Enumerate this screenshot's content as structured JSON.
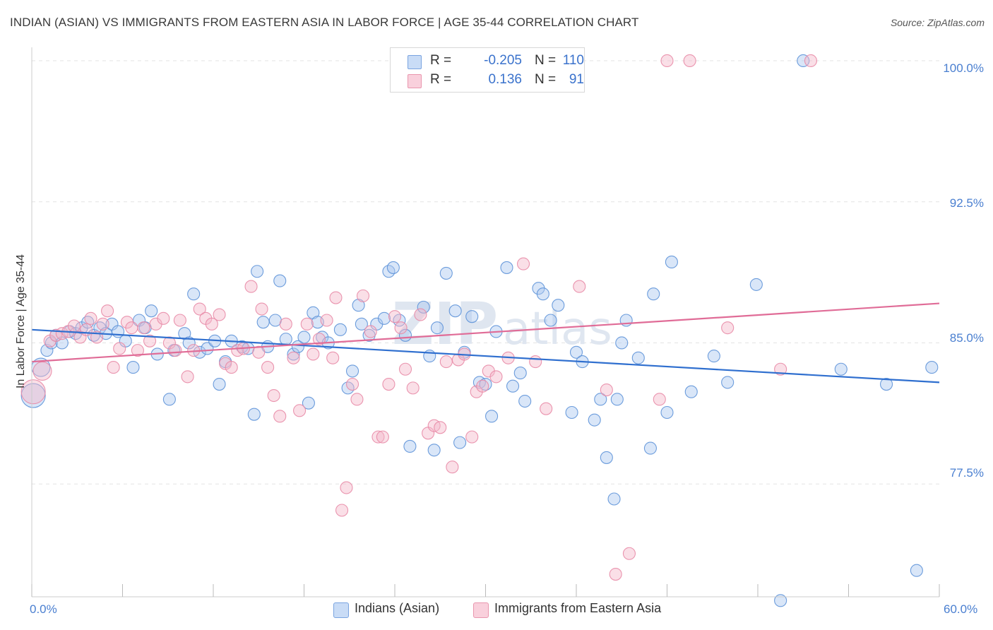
{
  "title": "INDIAN (ASIAN) VS IMMIGRANTS FROM EASTERN ASIA IN LABOR FORCE | AGE 35-44 CORRELATION CHART",
  "source": "Source: ZipAtlas.com",
  "watermark": "ZIPatlas",
  "stats": [
    {
      "r_label": "R =",
      "r_value": "-0.205",
      "n_label": "N =",
      "n_value": "110",
      "color": "#aac8f0"
    },
    {
      "r_label": "R =",
      "r_value": "0.136",
      "n_label": "N =",
      "n_value": "91",
      "color": "#f5b8ca"
    }
  ],
  "colors": {
    "blue_fill": "#aac8f0",
    "blue_stroke": "#5d92d8",
    "blue_line": "#2f6fcf",
    "pink_fill": "#f5b8ca",
    "pink_stroke": "#e88aa6",
    "pink_line": "#e06c97",
    "tick_text": "#4a7fd0",
    "grid": "#e3e3e3"
  },
  "chart_data": {
    "type": "scatter",
    "title": "INDIAN (ASIAN) VS IMMIGRANTS FROM EASTERN ASIA IN LABOR FORCE | AGE 35-44 CORRELATION CHART",
    "xlabel": "",
    "ylabel": "In Labor Force | Age 35-44",
    "xlim": [
      0,
      60
    ],
    "ylim": [
      71.5,
      100.6
    ],
    "x_tick_labels": [
      "0.0%",
      "60.0%"
    ],
    "y_ticks": [
      77.5,
      85.0,
      92.5,
      100.0
    ],
    "y_tick_labels": [
      "77.5%",
      "85.0%",
      "92.5%",
      "100.0%"
    ],
    "grid": true,
    "legend_position": "bottom",
    "series": [
      {
        "name": "Indians (Asian)",
        "trend": {
          "x": [
            0,
            60
          ],
          "y": [
            85.7,
            82.9
          ]
        },
        "points": [
          [
            0.1,
            82.2
          ],
          [
            0.6,
            83.7
          ],
          [
            1.0,
            84.6
          ],
          [
            1.3,
            85.0
          ],
          [
            1.6,
            85.4
          ],
          [
            2.0,
            85.0
          ],
          [
            2.5,
            85.6
          ],
          [
            2.9,
            85.5
          ],
          [
            3.3,
            85.8
          ],
          [
            3.7,
            86.1
          ],
          [
            4.1,
            85.4
          ],
          [
            4.5,
            85.8
          ],
          [
            4.9,
            85.5
          ],
          [
            5.3,
            86.0
          ],
          [
            5.7,
            85.6
          ],
          [
            6.2,
            85.1
          ],
          [
            6.7,
            83.7
          ],
          [
            7.1,
            86.2
          ],
          [
            7.5,
            85.8
          ],
          [
            7.9,
            86.7
          ],
          [
            8.3,
            84.4
          ],
          [
            9.1,
            82.0
          ],
          [
            9.4,
            84.6
          ],
          [
            10.1,
            85.5
          ],
          [
            10.4,
            85.0
          ],
          [
            10.7,
            87.6
          ],
          [
            11.1,
            84.5
          ],
          [
            11.6,
            84.7
          ],
          [
            12.1,
            85.1
          ],
          [
            12.4,
            82.8
          ],
          [
            12.8,
            84.0
          ],
          [
            13.2,
            85.1
          ],
          [
            13.9,
            84.8
          ],
          [
            14.3,
            84.7
          ],
          [
            14.7,
            81.2
          ],
          [
            14.9,
            88.8
          ],
          [
            15.3,
            86.1
          ],
          [
            15.6,
            84.8
          ],
          [
            16.1,
            86.2
          ],
          [
            16.4,
            88.3
          ],
          [
            16.8,
            85.2
          ],
          [
            17.3,
            84.4
          ],
          [
            17.6,
            84.8
          ],
          [
            18.0,
            85.3
          ],
          [
            18.3,
            81.8
          ],
          [
            18.6,
            86.6
          ],
          [
            18.9,
            86.1
          ],
          [
            19.2,
            85.3
          ],
          [
            19.6,
            85.0
          ],
          [
            20.4,
            85.7
          ],
          [
            20.9,
            82.6
          ],
          [
            21.2,
            83.5
          ],
          [
            21.6,
            87.0
          ],
          [
            21.8,
            86.0
          ],
          [
            22.3,
            85.4
          ],
          [
            22.8,
            86.0
          ],
          [
            23.3,
            86.3
          ],
          [
            23.6,
            88.8
          ],
          [
            23.9,
            89.0
          ],
          [
            24.3,
            86.2
          ],
          [
            24.7,
            85.4
          ],
          [
            25.0,
            79.5
          ],
          [
            25.9,
            86.9
          ],
          [
            26.3,
            84.3
          ],
          [
            26.6,
            79.3
          ],
          [
            26.8,
            85.8
          ],
          [
            27.4,
            88.7
          ],
          [
            28.0,
            86.7
          ],
          [
            28.3,
            79.7
          ],
          [
            28.6,
            84.5
          ],
          [
            29.1,
            86.4
          ],
          [
            29.6,
            82.9
          ],
          [
            30.0,
            82.8
          ],
          [
            30.4,
            81.1
          ],
          [
            30.7,
            85.6
          ],
          [
            31.4,
            89.0
          ],
          [
            31.8,
            82.7
          ],
          [
            32.3,
            83.4
          ],
          [
            32.6,
            81.9
          ],
          [
            33.5,
            87.9
          ],
          [
            33.8,
            87.6
          ],
          [
            34.3,
            86.2
          ],
          [
            34.8,
            87.0
          ],
          [
            35.7,
            81.3
          ],
          [
            36.0,
            84.5
          ],
          [
            36.4,
            84.0
          ],
          [
            37.2,
            80.9
          ],
          [
            37.6,
            82.0
          ],
          [
            38.0,
            78.9
          ],
          [
            38.5,
            76.7
          ],
          [
            38.7,
            82.0
          ],
          [
            39.0,
            85.0
          ],
          [
            39.3,
            86.2
          ],
          [
            40.1,
            84.2
          ],
          [
            40.9,
            79.4
          ],
          [
            41.1,
            87.6
          ],
          [
            42.0,
            81.3
          ],
          [
            42.3,
            89.3
          ],
          [
            43.6,
            82.4
          ],
          [
            45.1,
            84.3
          ],
          [
            46.0,
            82.9
          ],
          [
            47.9,
            88.1
          ],
          [
            49.5,
            71.3
          ],
          [
            51.0,
            100.0
          ],
          [
            53.5,
            83.6
          ],
          [
            56.5,
            82.8
          ],
          [
            58.5,
            72.9
          ],
          [
            59.5,
            83.7
          ]
        ]
      },
      {
        "name": "Immigrants from Eastern Asia",
        "trend": {
          "x": [
            0,
            60
          ],
          "y": [
            84.0,
            87.1
          ]
        },
        "points": [
          [
            0.1,
            82.4
          ],
          [
            0.7,
            83.5
          ],
          [
            1.2,
            85.1
          ],
          [
            1.6,
            85.4
          ],
          [
            2.0,
            85.5
          ],
          [
            2.4,
            85.6
          ],
          [
            2.8,
            85.9
          ],
          [
            3.2,
            85.3
          ],
          [
            3.6,
            85.7
          ],
          [
            3.9,
            86.3
          ],
          [
            4.3,
            85.3
          ],
          [
            4.7,
            86.0
          ],
          [
            5.0,
            86.7
          ],
          [
            5.4,
            83.7
          ],
          [
            5.8,
            84.7
          ],
          [
            6.3,
            86.1
          ],
          [
            6.6,
            85.8
          ],
          [
            7.0,
            84.6
          ],
          [
            7.4,
            85.8
          ],
          [
            7.8,
            85.1
          ],
          [
            8.2,
            86.0
          ],
          [
            8.7,
            86.3
          ],
          [
            9.1,
            85.0
          ],
          [
            9.5,
            84.6
          ],
          [
            9.8,
            86.2
          ],
          [
            10.3,
            83.2
          ],
          [
            10.7,
            84.6
          ],
          [
            11.1,
            86.8
          ],
          [
            11.5,
            86.3
          ],
          [
            11.9,
            86.0
          ],
          [
            12.4,
            86.5
          ],
          [
            12.8,
            83.9
          ],
          [
            13.2,
            83.7
          ],
          [
            13.6,
            84.6
          ],
          [
            14.0,
            84.7
          ],
          [
            14.5,
            88.0
          ],
          [
            15.0,
            84.5
          ],
          [
            15.2,
            86.8
          ],
          [
            15.6,
            83.7
          ],
          [
            16.0,
            82.2
          ],
          [
            16.4,
            81.1
          ],
          [
            16.8,
            86.0
          ],
          [
            17.3,
            84.2
          ],
          [
            17.7,
            81.4
          ],
          [
            18.2,
            86.0
          ],
          [
            18.6,
            84.4
          ],
          [
            19.0,
            85.2
          ],
          [
            19.5,
            86.2
          ],
          [
            19.9,
            84.2
          ],
          [
            20.1,
            87.4
          ],
          [
            20.5,
            76.1
          ],
          [
            20.8,
            77.3
          ],
          [
            21.2,
            82.8
          ],
          [
            21.5,
            82.0
          ],
          [
            21.9,
            87.5
          ],
          [
            22.4,
            85.6
          ],
          [
            22.9,
            80.0
          ],
          [
            23.2,
            80.0
          ],
          [
            23.6,
            82.8
          ],
          [
            24.0,
            86.4
          ],
          [
            24.4,
            85.8
          ],
          [
            24.7,
            83.6
          ],
          [
            25.2,
            82.6
          ],
          [
            25.7,
            86.5
          ],
          [
            26.2,
            80.2
          ],
          [
            26.6,
            80.6
          ],
          [
            27.0,
            80.5
          ],
          [
            27.4,
            84.0
          ],
          [
            27.8,
            78.4
          ],
          [
            28.2,
            84.1
          ],
          [
            28.6,
            84.4
          ],
          [
            29.1,
            80.0
          ],
          [
            29.4,
            82.4
          ],
          [
            29.8,
            82.7
          ],
          [
            30.2,
            83.5
          ],
          [
            30.7,
            83.2
          ],
          [
            31.5,
            84.2
          ],
          [
            32.5,
            89.2
          ],
          [
            33.3,
            84.0
          ],
          [
            34.0,
            81.5
          ],
          [
            35.0,
            100.0
          ],
          [
            36.2,
            88.0
          ],
          [
            38.0,
            82.5
          ],
          [
            38.6,
            72.7
          ],
          [
            39.5,
            73.8
          ],
          [
            41.5,
            82.0
          ],
          [
            42.0,
            100.0
          ],
          [
            43.5,
            100.0
          ],
          [
            46.0,
            85.8
          ],
          [
            49.5,
            83.6
          ],
          [
            51.5,
            100.0
          ]
        ]
      }
    ]
  },
  "axes": {
    "x_min_label": "0.0%",
    "x_max_label": "60.0%",
    "y_label": "In Labor Force | Age 35-44",
    "y_tick_labels": [
      "100.0%",
      "92.5%",
      "85.0%",
      "77.5%"
    ]
  },
  "legend": [
    {
      "label": "Indians (Asian)",
      "color": "#aac8f0"
    },
    {
      "label": "Immigrants from Eastern Asia",
      "color": "#f5b8ca"
    }
  ]
}
